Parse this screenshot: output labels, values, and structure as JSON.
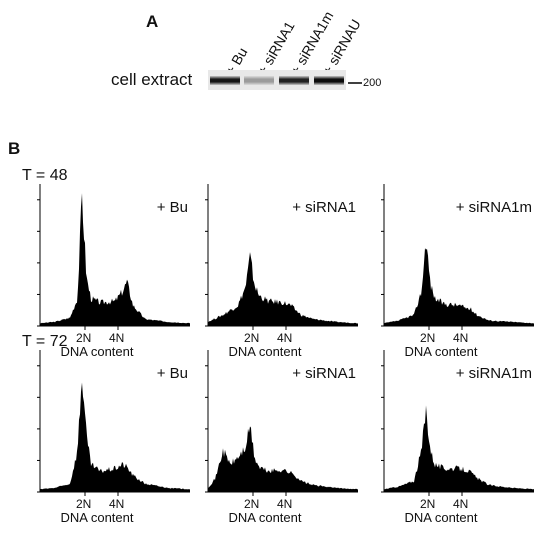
{
  "panel_a": {
    "letter": "A",
    "row_label": "cell extract",
    "lanes": [
      "+ Bu",
      "+ siRNA1",
      "+ siRNA1m",
      "+ siRNAU"
    ],
    "band_intensity": [
      0.95,
      0.35,
      0.9,
      1.0
    ],
    "marker": "200"
  },
  "panel_b": {
    "letter": "B",
    "rows": [
      {
        "time_label": "T = 48",
        "plots": [
          {
            "treatment": "+ Bu",
            "x_ticks": [
              "2N",
              "4N"
            ],
            "xlabel": "DNA content"
          },
          {
            "treatment": "+ siRNA1",
            "x_ticks": [
              "2N",
              "4N"
            ],
            "xlabel": "DNA content"
          },
          {
            "treatment": "+ siRNA1m",
            "x_ticks": [
              "2N",
              "4N"
            ],
            "xlabel": "DNA content"
          }
        ]
      },
      {
        "time_label": "T = 72",
        "plots": [
          {
            "treatment": "+ Bu",
            "x_ticks": [
              "2N",
              "4N"
            ],
            "xlabel": "DNA content"
          },
          {
            "treatment": "+ siRNA1",
            "x_ticks": [
              "2N",
              "4N"
            ],
            "xlabel": "DNA content"
          },
          {
            "treatment": "+ siRNA1m",
            "x_ticks": [
              "2N",
              "4N"
            ],
            "xlabel": "DNA content"
          }
        ]
      }
    ]
  },
  "chart_data": [
    {
      "type": "area",
      "xlabel": "",
      "ylabel": "",
      "x_ticks": [
        "2N",
        "4N"
      ],
      "x": [
        0,
        0.1,
        0.2,
        0.25,
        0.28,
        0.31,
        0.34,
        0.4,
        0.5,
        0.55,
        0.58,
        0.62,
        0.7,
        0.85,
        1.0
      ],
      "values": [
        0.02,
        0.03,
        0.06,
        0.2,
        0.95,
        0.35,
        0.2,
        0.17,
        0.18,
        0.25,
        0.32,
        0.15,
        0.05,
        0.03,
        0.02
      ]
    },
    {
      "type": "area",
      "xlabel": "",
      "ylabel": "",
      "x_ticks": [
        "2N",
        "4N"
      ],
      "x": [
        0,
        0.1,
        0.2,
        0.25,
        0.28,
        0.31,
        0.34,
        0.4,
        0.5,
        0.55,
        0.58,
        0.62,
        0.7,
        0.85,
        1.0
      ],
      "values": [
        0.03,
        0.08,
        0.15,
        0.28,
        0.5,
        0.3,
        0.22,
        0.18,
        0.17,
        0.15,
        0.12,
        0.08,
        0.05,
        0.03,
        0.02
      ]
    },
    {
      "type": "area",
      "xlabel": "",
      "ylabel": "",
      "x_ticks": [
        "2N",
        "4N"
      ],
      "x": [
        0,
        0.1,
        0.2,
        0.25,
        0.28,
        0.31,
        0.34,
        0.4,
        0.5,
        0.55,
        0.58,
        0.62,
        0.7,
        0.85,
        1.0
      ],
      "values": [
        0.02,
        0.04,
        0.08,
        0.25,
        0.63,
        0.3,
        0.2,
        0.16,
        0.15,
        0.13,
        0.12,
        0.08,
        0.04,
        0.03,
        0.02
      ]
    },
    {
      "type": "area",
      "xlabel": "",
      "ylabel": "",
      "x_ticks": [
        "2N",
        "4N"
      ],
      "x": [
        0,
        0.1,
        0.2,
        0.25,
        0.28,
        0.31,
        0.34,
        0.4,
        0.5,
        0.55,
        0.58,
        0.62,
        0.7,
        0.85,
        1.0
      ],
      "values": [
        0.02,
        0.03,
        0.06,
        0.3,
        0.85,
        0.4,
        0.2,
        0.15,
        0.17,
        0.2,
        0.18,
        0.12,
        0.06,
        0.03,
        0.02
      ]
    },
    {
      "type": "area",
      "xlabel": "",
      "ylabel": "",
      "x_ticks": [
        "2N",
        "4N"
      ],
      "x": [
        0,
        0.05,
        0.1,
        0.15,
        0.2,
        0.25,
        0.28,
        0.31,
        0.34,
        0.4,
        0.5,
        0.55,
        0.58,
        0.62,
        0.7,
        0.85,
        1.0
      ],
      "values": [
        0.03,
        0.1,
        0.3,
        0.2,
        0.25,
        0.32,
        0.48,
        0.25,
        0.18,
        0.15,
        0.16,
        0.14,
        0.12,
        0.08,
        0.05,
        0.03,
        0.02
      ]
    },
    {
      "type": "area",
      "xlabel": "",
      "ylabel": "",
      "x_ticks": [
        "2N",
        "4N"
      ],
      "x": [
        0,
        0.1,
        0.2,
        0.25,
        0.28,
        0.31,
        0.34,
        0.4,
        0.5,
        0.55,
        0.58,
        0.62,
        0.7,
        0.85,
        1.0
      ],
      "values": [
        0.02,
        0.04,
        0.08,
        0.3,
        0.6,
        0.3,
        0.2,
        0.17,
        0.17,
        0.16,
        0.14,
        0.1,
        0.05,
        0.03,
        0.02
      ]
    }
  ]
}
